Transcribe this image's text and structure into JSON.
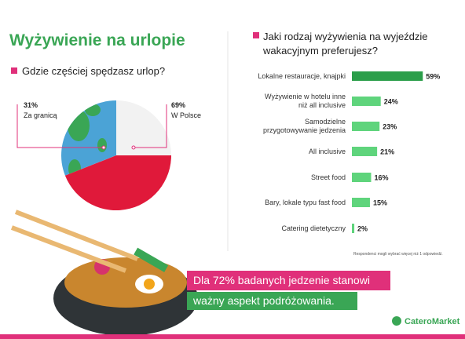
{
  "title": "Wyżywienie na urlopie",
  "chart_data": [
    {
      "type": "pie",
      "title": "Gdzie częściej spędzasz urlop?",
      "categories": [
        "Za granicą",
        "W Polsce"
      ],
      "values": [
        31,
        69
      ],
      "value_labels": [
        "31%",
        "69%"
      ],
      "colors": [
        "#4ba3d6",
        "#f2f2f2"
      ],
      "lower_half_color": "#e0193a"
    },
    {
      "type": "hbar",
      "title": "Jaki rodzaj wyżywienia na wyjeździe\nwakacyjnym preferujesz?",
      "categories": [
        "Lokalne restauracje, knajpki",
        "Wyżywienie w hotelu inne\nniż all inclusive",
        "Samodzielne\nprzygotowywanie jedzenia",
        "All inclusive",
        "Street food",
        "Bary, lokale typu fast food",
        "Catering dietetyczny"
      ],
      "values": [
        59,
        24,
        23,
        21,
        16,
        15,
        2
      ],
      "value_labels": [
        "59%",
        "24%",
        "23%",
        "21%",
        "16%",
        "15%",
        "2%"
      ],
      "color": "#5fd47c",
      "top_color": "#2b9e4a",
      "note": "Respondenci mogli wybrać więcej niż 1 odpowiedź."
    }
  ],
  "banner": [
    "Dla 72% badanych jedzenie stanowi",
    "ważny aspekt podróżowania."
  ],
  "logo": "CateroMarket"
}
